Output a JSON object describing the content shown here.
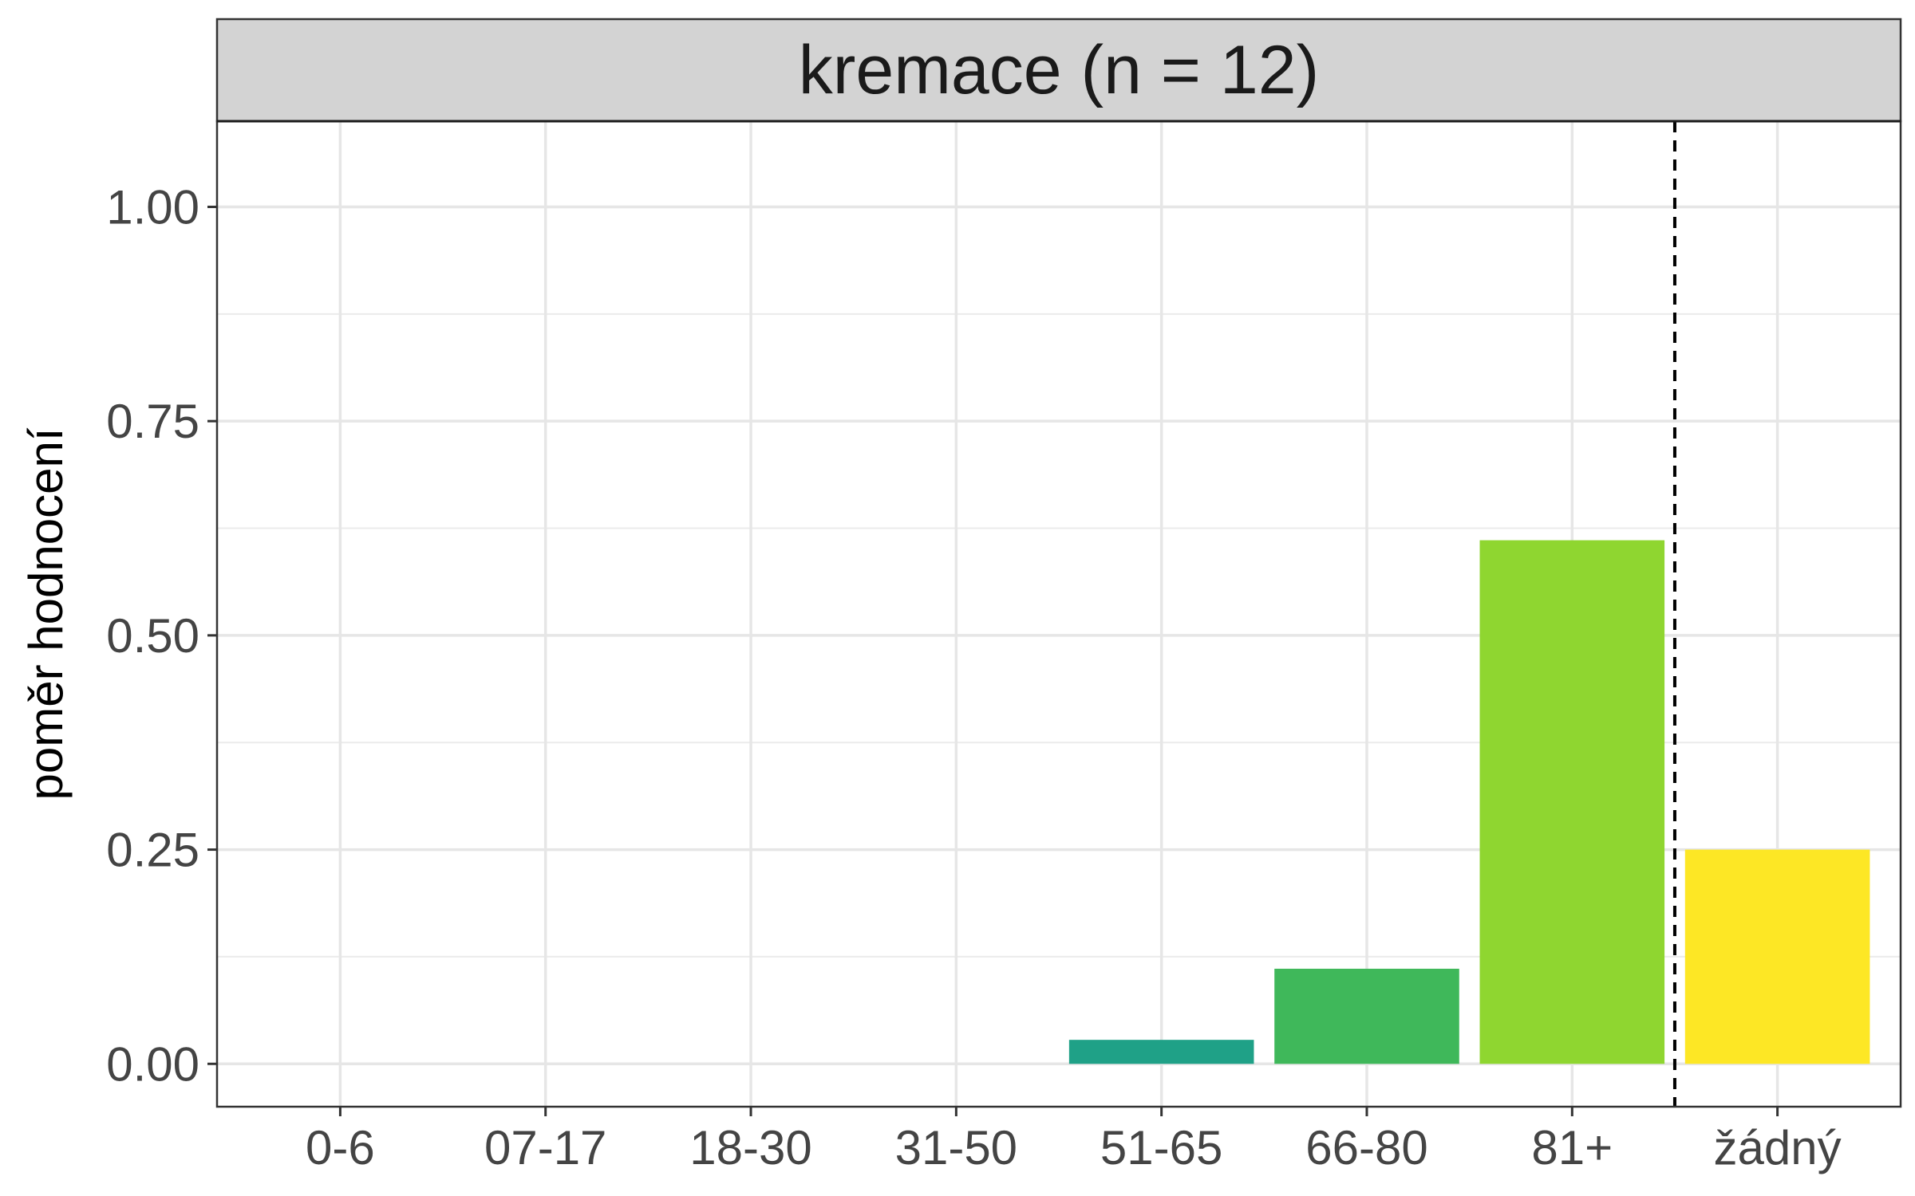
{
  "chart_data": {
    "type": "bar",
    "title": "kremace (n = 12)",
    "xlabel": "",
    "ylabel": "poměr hodnocení",
    "categories": [
      "0-6",
      "07-17",
      "18-30",
      "31-50",
      "51-65",
      "66-80",
      "81+",
      "žádný"
    ],
    "values": [
      0,
      0,
      0,
      0,
      0.028,
      0.111,
      0.611,
      0.25
    ],
    "bar_colors": [
      "#440154",
      "#46337E",
      "#365C8D",
      "#277F8E",
      "#1FA187",
      "#3FB85A",
      "#8FD630",
      "#FDE725"
    ],
    "ylim": [
      -0.05,
      1.1
    ],
    "yticks": [
      0,
      0.25,
      0.5,
      0.75,
      1.0
    ],
    "ytick_labels": [
      "0.00",
      "0.25",
      "0.50",
      "0.75",
      "1.00"
    ],
    "reference_line": {
      "style": "dashed",
      "between": [
        "81+",
        "žádný"
      ]
    },
    "grid": true,
    "strip_background": "#D3D3D3"
  }
}
